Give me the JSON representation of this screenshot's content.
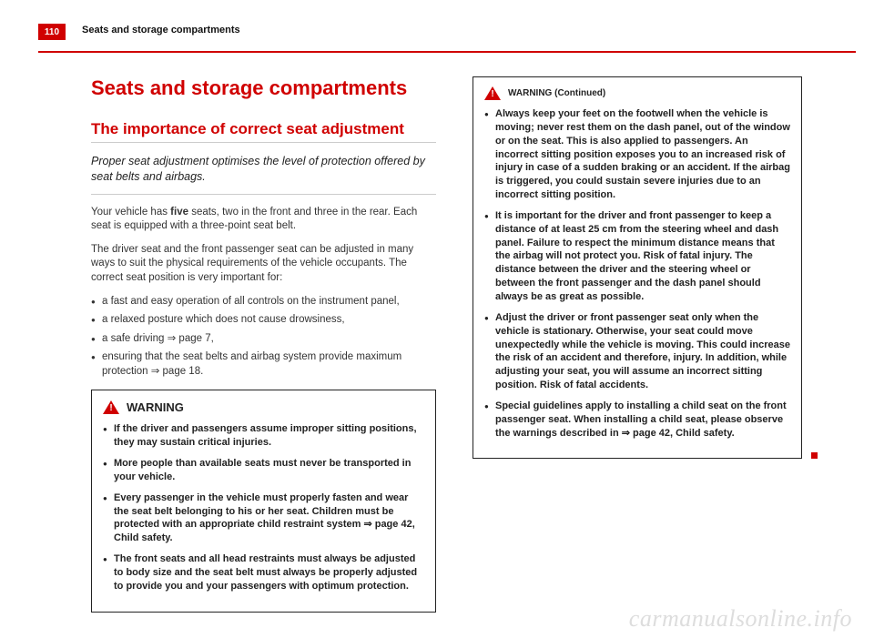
{
  "page_number": "110",
  "running_header": "Seats and storage compartments",
  "chapter_title": "Seats and storage compartments",
  "section_title": "The importance of correct seat adjustment",
  "lede": "Proper seat adjustment optimises the level of protection offered by seat belts and airbags.",
  "para1a": "Your vehicle has ",
  "para1b": "five",
  "para1c": " seats, two in the front and three in the rear. Each seat is equipped with a three-point seat belt.",
  "para2": "The driver seat and the front passenger seat can be adjusted in many ways to suit the physical requirements of the vehicle occupants. The correct seat position is very important for:",
  "list": [
    "a fast and easy operation of all controls on the instrument panel,",
    "a relaxed posture which does not cause drowsiness,",
    "a safe driving ⇒ page 7,",
    "ensuring that the seat belts and airbag system provide maximum protection ⇒ page 18."
  ],
  "warning_label": "WARNING",
  "warning_continued": "WARNING (Continued)",
  "warnings_left": [
    "If the driver and passengers assume improper sitting positions, they may sustain critical injuries.",
    "More people than available seats must never be transported in your vehicle.",
    "Every passenger in the vehicle must properly fasten and wear the seat belt belonging to his or her seat. Children must be protected with an appropriate child restraint system ⇒ page 42, Child safety.",
    "The front seats and all head restraints must always be adjusted to body size and the seat belt must always be properly adjusted to provide you and your passengers with optimum protection."
  ],
  "warnings_right": [
    "Always keep your feet on the footwell when the vehicle is moving; never rest them on the dash panel, out of the window or on the seat. This is also applied to passengers. An incorrect sitting position exposes you to an increased risk of injury in case of a sudden braking or an accident. If the airbag is triggered, you could sustain severe injuries due to an incorrect sitting position.",
    "It is important for the driver and front passenger to keep a distance of at least 25 cm from the steering wheel and dash panel. Failure to respect the minimum distance means that the airbag will not protect you. Risk of fatal injury. The distance between the driver and the steering wheel or between the front passenger and the dash panel should always be as great as possible.",
    "Adjust the driver or front passenger seat only when the vehicle is stationary. Otherwise, your seat could move unexpectedly while the vehicle is moving. This could increase the risk of an accident and therefore, injury. In addition, while adjusting your seat, you will assume an incorrect sitting position. Risk of fatal accidents.",
    "Special guidelines apply to installing a child seat on the front passenger seat. When installing a child seat, please observe the warnings described in ⇒ page 42, Child safety."
  ],
  "watermark": "carmanualsonline.info",
  "colors": {
    "accent": "#d00000"
  }
}
